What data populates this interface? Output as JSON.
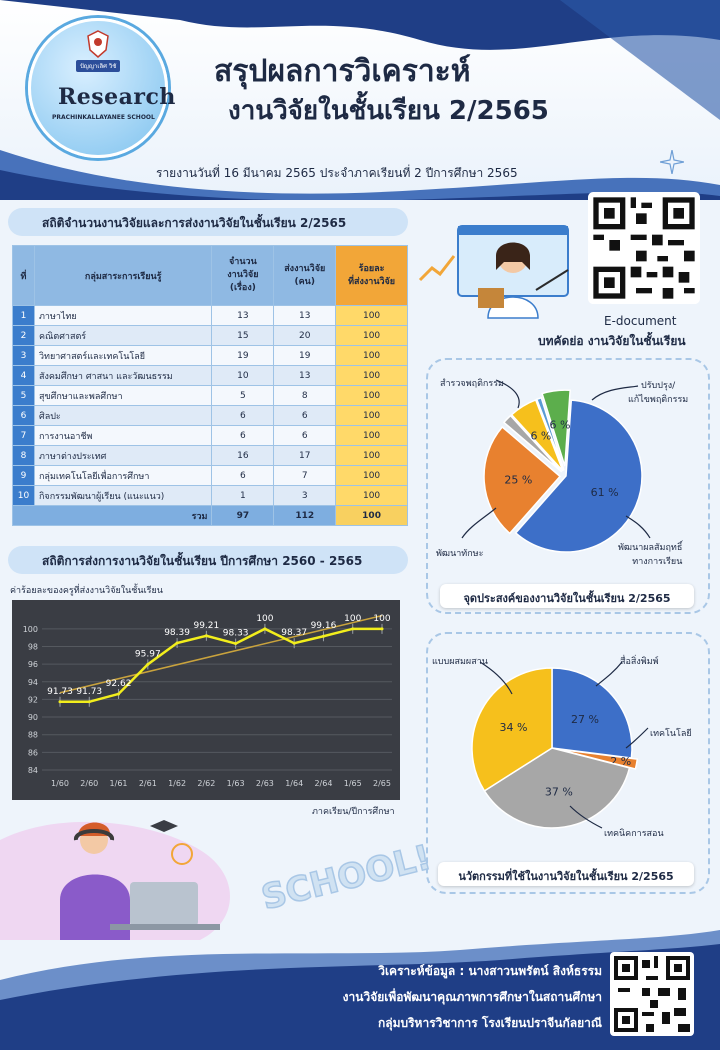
{
  "header": {
    "logo_ribbon": "ปัญญาเลิศ วิชั",
    "logo_title": "Research",
    "logo_school": "PRACHINKALLAYANEE SCHOOL",
    "title_line1": "สรุปผลการวิเคราะห์",
    "title_line2": "งานวิจัยในชั้นเรียน 2/2565",
    "report_line": "รายงานวันที่  16  มีนาคม  2565  ประจำภาคเรียนที่ 2  ปีการศึกษา 2565"
  },
  "qr": {
    "label1": "E-document",
    "label2": "บทคัดย่อ งานวิจัยในชั้นเรียน"
  },
  "table_section": {
    "title": "สถิติจำนวนงานวิจัยและการส่งงานวิจัยในชั้นเรียน 2/2565",
    "headers": {
      "no": "ที่",
      "group": "กลุ่มสาระการเรียนรู้",
      "count_l1": "จำนวน",
      "count_l2": "งานวิจัย",
      "count_l3": "(เรื่อง)",
      "sent_l1": "ส่งงานวิจัย",
      "sent_l2": "(คน)",
      "pct_l1": "ร้อยละ",
      "pct_l2": "ที่ส่งงานวิจัย"
    },
    "rows": [
      {
        "no": "1",
        "group": "ภาษาไทย",
        "count": "13",
        "sent": "13",
        "pct": "100"
      },
      {
        "no": "2",
        "group": "คณิตศาสตร์",
        "count": "15",
        "sent": "20",
        "pct": "100"
      },
      {
        "no": "3",
        "group": "วิทยาศาสตร์และเทคโนโลยี",
        "count": "19",
        "sent": "19",
        "pct": "100"
      },
      {
        "no": "4",
        "group": "สังคมศึกษา ศาสนา และวัฒนธรรม",
        "count": "10",
        "sent": "13",
        "pct": "100"
      },
      {
        "no": "5",
        "group": "สุขศึกษาและพลศึกษา",
        "count": "5",
        "sent": "8",
        "pct": "100"
      },
      {
        "no": "6",
        "group": "ศิลปะ",
        "count": "6",
        "sent": "6",
        "pct": "100"
      },
      {
        "no": "7",
        "group": "การงานอาชีพ",
        "count": "6",
        "sent": "6",
        "pct": "100"
      },
      {
        "no": "8",
        "group": "ภาษาต่างประเทศ",
        "count": "16",
        "sent": "17",
        "pct": "100"
      },
      {
        "no": "9",
        "group": "กลุ่มเทคโนโลยีเพื่อการศึกษา",
        "count": "6",
        "sent": "7",
        "pct": "100"
      },
      {
        "no": "10",
        "group": "กิจกรรมพัฒนาผู้เรียน (แนะแนว)",
        "count": "1",
        "sent": "3",
        "pct": "100"
      }
    ],
    "total": {
      "label": "รวม",
      "count": "97",
      "sent": "112",
      "pct": "100"
    }
  },
  "line_section": {
    "title": "สถิติการส่งการงานวิจัยในชั้นเรียน ปีการศึกษา 2560 - 2565"
  },
  "chart_data": [
    {
      "type": "line",
      "ylabel": "ค่าร้อยละของครูที่ส่งงานวิจัยในชั้นเรียน",
      "xlabel": "ภาคเรียน/ปีการศึกษา",
      "categories": [
        "1/60",
        "2/60",
        "1/61",
        "2/61",
        "1/62",
        "2/62",
        "1/63",
        "2/63",
        "1/64",
        "2/64",
        "1/65",
        "2/65"
      ],
      "values": [
        91.73,
        91.73,
        92.62,
        95.97,
        98.39,
        99.21,
        98.33,
        100,
        98.37,
        99.16,
        100,
        100
      ],
      "data_labels": [
        "91.73",
        "91.73",
        "92.62",
        "95.97",
        "98.39",
        "99.21",
        "98.33",
        "100",
        "98.37",
        "99.16",
        "100",
        "100"
      ],
      "ylim": [
        84,
        101
      ],
      "yticks": [
        "84",
        "86",
        "88",
        "90",
        "92",
        "94",
        "96",
        "98",
        "100"
      ],
      "trendline": true,
      "grid": true,
      "colors": {
        "line": "#f2ee1c",
        "trend": "#c9a33d",
        "bg": "#3a3d44"
      }
    },
    {
      "type": "pie",
      "caption": "จุดประสงค์ของงานวิจัยในชั้นเรียน 2/2565",
      "slices": [
        {
          "name": "พัฒนาผลสัมฤทธิ์ทางการเรียน",
          "value": 61,
          "label": "61 %",
          "color": "#3d6fc8"
        },
        {
          "name": "พัฒนาทักษะ",
          "value": 25,
          "label": "25 %",
          "color": "#e8812f"
        },
        {
          "name": "",
          "value": 2,
          "label": "",
          "color": "#a7a7a7"
        },
        {
          "name": "สำรวจพฤติกรรม",
          "value": 6,
          "label": "6 %",
          "color": "#f6c01c"
        },
        {
          "name": "",
          "value": 1,
          "label": "",
          "color": "#5b9bd5"
        },
        {
          "name": "ปรับปรุง/แก้ไขพฤติกรรม",
          "value": 6,
          "label": "6 %",
          "color": "#5cae4c"
        }
      ],
      "callouts": {
        "survey": "สำรวจพฤติกรรม",
        "fix_l1": "ปรับปรุง/",
        "fix_l2": "แก้ไขพฤติกรรม",
        "skill": "พัฒนาทักษะ",
        "achieve_l1": "พัฒนาผลสัมฤทธิ์",
        "achieve_l2": "ทางการเรียน"
      }
    },
    {
      "type": "pie",
      "caption": "นวัตกรรมที่ใช้ในงานวิจัยในชั้นเรียน 2/2565",
      "slices": [
        {
          "name": "สื่อสิ่งพิมพ์",
          "value": 27,
          "label": "27 %",
          "color": "#3d6fc8"
        },
        {
          "name": "เทคโนโลยี",
          "value": 2,
          "label": "2 %",
          "color": "#e8812f"
        },
        {
          "name": "เทคนิคการสอน",
          "value": 37,
          "label": "37 %",
          "color": "#a7a7a7"
        },
        {
          "name": "แบบผสมผสาน",
          "value": 34,
          "label": "34 %",
          "color": "#f6c01c"
        }
      ]
    }
  ],
  "decor": {
    "school_word": "SCHOOL!"
  },
  "footer": {
    "line1": "วิเคราะห์ข้อมูล : นางสาวนพรัตน์ สิงห์ธรรม",
    "line2": "งานวิจัยเพื่อพัฒนาคุณภาพการศึกษาในสถานศึกษา",
    "line3": "กลุ่มบริหารวิชาการ  โรงเรียนปราจีนกัลยาณี"
  },
  "colors": {
    "navy": "#1e2a44",
    "blue": "#3b7dcc",
    "footer": "#1f3e86",
    "orange_header": "#f2a638",
    "yellow_cell": "#ffd969"
  }
}
